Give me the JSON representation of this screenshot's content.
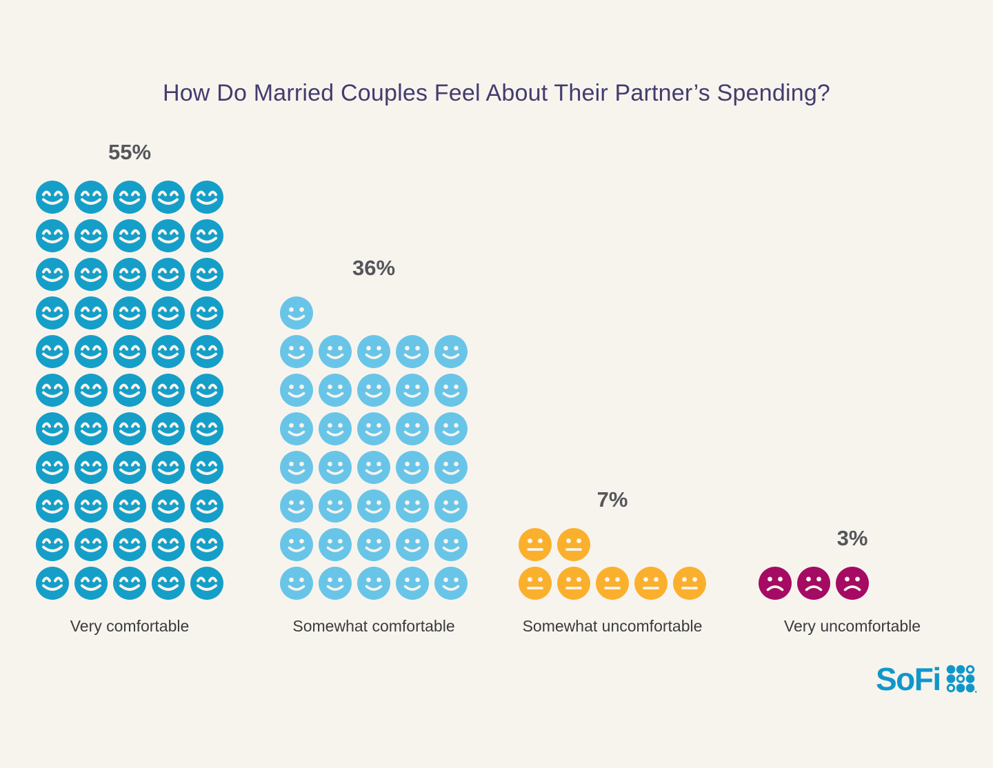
{
  "page": {
    "background": "#f7f4ee"
  },
  "title": {
    "text": "How Do Married Couples Feel About Their Partner’s Spending?",
    "color": "#433c6d"
  },
  "branding": {
    "logo_text": "SoFi",
    "logo_color": "#1097c9",
    "dot_pattern": [
      [
        "filled",
        "filled",
        "outline"
      ],
      [
        "filled",
        "outline",
        "filled"
      ],
      [
        "outline",
        "filled",
        "filled"
      ]
    ]
  },
  "chart_data": {
    "type": "pictograph",
    "title": "How Do Married Couples Feel About Their Partner’s Spending?",
    "unit_percent_per_icon": 1,
    "icons_per_row": 5,
    "legend": "none",
    "axes": "none",
    "categories": [
      "Very comfortable",
      "Somewhat comfortable",
      "Somewhat uncomfortable",
      "Very uncomfortable"
    ],
    "values": [
      55,
      36,
      7,
      3
    ],
    "series": [
      {
        "label": "Very comfortable",
        "value": 55,
        "percent_label": "55%",
        "icon_count": 55,
        "face": "smile-closed-eyes",
        "color": "#159fc8"
      },
      {
        "label": "Somewhat comfortable",
        "value": 36,
        "percent_label": "36%",
        "icon_count": 36,
        "face": "smile-open-eyes",
        "color": "#69c5e8"
      },
      {
        "label": "Somewhat uncomfortable",
        "value": 7,
        "percent_label": "7%",
        "icon_count": 7,
        "face": "neutral",
        "color": "#fbb02d"
      },
      {
        "label": "Very uncomfortable",
        "value": 3,
        "percent_label": "3%",
        "icon_count": 3,
        "face": "frown",
        "color": "#a50b63"
      }
    ],
    "percent_label_color": "#55565a",
    "category_label_color": "#3b3b3c"
  }
}
